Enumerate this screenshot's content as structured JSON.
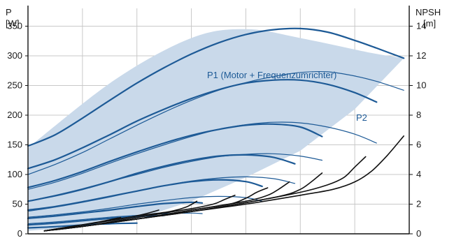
{
  "chart_data": {
    "type": "line",
    "y_left": {
      "label_top": "P",
      "label_unit": "[W]",
      "ylim": [
        0,
        380
      ],
      "ticks": [
        0,
        50,
        100,
        150,
        200,
        250,
        300,
        350
      ]
    },
    "y_right": {
      "label_top": "NPSH",
      "label_unit": "[m]",
      "ylim": [
        0,
        15.2
      ],
      "ticks": [
        0,
        2,
        4,
        6,
        8,
        10,
        12,
        14
      ]
    },
    "xlim": [
      0,
      7
    ],
    "grid": true,
    "annotations": [
      {
        "text": "P1 (Motor + Frequenzumrichter)"
      },
      {
        "text": "P2"
      }
    ],
    "colors": {
      "power_band": "#c9d9ea",
      "power_band_edge": "#e6eef6",
      "p1_curve": "#1d5a96",
      "p2_curve": "#1d5a96",
      "npsh_curve": "#111111",
      "label": "#1d5a96",
      "grid": "#c8c8c8"
    },
    "band_envelope": {
      "upper": [
        [
          0,
          145
        ],
        [
          1.6,
          260
        ],
        [
          3,
          330
        ],
        [
          4,
          345
        ],
        [
          5,
          330
        ],
        [
          6.3,
          305
        ],
        [
          6.9,
          296
        ]
      ],
      "lower": [
        [
          0,
          5
        ],
        [
          1,
          12
        ],
        [
          2,
          25
        ],
        [
          3,
          55
        ],
        [
          4,
          95
        ],
        [
          5,
          140
        ],
        [
          6,
          210
        ],
        [
          6.9,
          296
        ]
      ]
    },
    "series": [
      {
        "group": "P1",
        "x": [
          0,
          0.5,
          1,
          1.5,
          2,
          2.5,
          3,
          3.5,
          4,
          4.5,
          5,
          5.5,
          6,
          6.4,
          6.9
        ],
        "y": [
          148,
          167,
          195,
          225,
          254,
          280,
          303,
          322,
          336,
          344,
          346,
          340,
          326,
          313,
          296
        ]
      },
      {
        "group": "P2",
        "x": [
          0,
          0.5,
          1,
          1.5,
          2,
          2.5,
          3,
          3.5,
          4,
          4.5,
          5,
          5.5,
          6,
          6.4,
          6.9
        ],
        "y": [
          100,
          117,
          137,
          160,
          183,
          205,
          225,
          242,
          255,
          265,
          272,
          273,
          266,
          257,
          242
        ]
      },
      {
        "group": "P1",
        "x": [
          0,
          0.5,
          1,
          1.5,
          2,
          2.5,
          3,
          3.5,
          4,
          4.5,
          5,
          5.5,
          6,
          6.4
        ],
        "y": [
          110,
          125,
          145,
          167,
          190,
          210,
          228,
          243,
          254,
          259,
          259,
          252,
          238,
          222
        ]
      },
      {
        "group": "P2",
        "x": [
          0,
          0.5,
          1,
          1.5,
          2,
          2.5,
          3,
          3.5,
          4,
          4.5,
          5,
          5.5,
          6,
          6.4
        ],
        "y": [
          75,
          87,
          102,
          119,
          135,
          150,
          164,
          176,
          184,
          188,
          187,
          180,
          168,
          153
        ]
      },
      {
        "group": "P1",
        "x": [
          0,
          0.5,
          1,
          1.5,
          2,
          2.5,
          3,
          3.5,
          4,
          4.5,
          5,
          5.4
        ],
        "y": [
          78,
          90,
          105,
          122,
          138,
          153,
          166,
          176,
          183,
          185,
          180,
          164
        ]
      },
      {
        "group": "P2",
        "x": [
          0,
          0.5,
          1,
          1.5,
          2,
          2.5,
          3,
          3.5,
          4,
          4.5,
          5,
          5.4
        ],
        "y": [
          55,
          65,
          76,
          88,
          100,
          112,
          122,
          130,
          134,
          135,
          131,
          124
        ]
      },
      {
        "group": "P1",
        "x": [
          0,
          0.5,
          1,
          1.5,
          2,
          2.5,
          3,
          3.5,
          4,
          4.5,
          4.9
        ],
        "y": [
          55,
          64,
          75,
          88,
          102,
          114,
          124,
          131,
          133,
          129,
          118
        ]
      },
      {
        "group": "P2",
        "x": [
          0,
          0.5,
          1,
          1.5,
          2,
          2.5,
          3,
          3.5,
          4,
          4.5,
          4.9
        ],
        "y": [
          38,
          45,
          53,
          62,
          72,
          81,
          89,
          94,
          96,
          93,
          85
        ]
      },
      {
        "group": "P1",
        "x": [
          0,
          0.5,
          1,
          1.5,
          2,
          2.5,
          3,
          3.5,
          4,
          4.3
        ],
        "y": [
          40,
          46,
          54,
          63,
          72,
          81,
          88,
          91,
          88,
          80
        ]
      },
      {
        "group": "P2",
        "x": [
          0,
          0.5,
          1,
          1.5,
          2,
          2.5,
          3,
          3.5,
          4,
          4.3
        ],
        "y": [
          28,
          32,
          37,
          43,
          50,
          56,
          61,
          63,
          61,
          55
        ]
      },
      {
        "group": "P1",
        "x": [
          0,
          0.5,
          1,
          1.5,
          2,
          2.5,
          3,
          3.2
        ],
        "y": [
          26,
          30,
          35,
          40,
          46,
          51,
          53,
          52
        ]
      },
      {
        "group": "P2",
        "x": [
          0,
          0.5,
          1,
          1.5,
          2,
          2.5,
          3,
          3.2
        ],
        "y": [
          17,
          20,
          24,
          28,
          31,
          34,
          35,
          34
        ]
      },
      {
        "group": "P1",
        "x": [
          0,
          0.5,
          1,
          1.5,
          2,
          2.5
        ],
        "y": [
          15,
          18,
          22,
          26,
          29,
          31
        ]
      },
      {
        "group": "P1",
        "x": [
          0,
          0.5,
          1,
          1.5,
          2
        ],
        "y": [
          10,
          12,
          15,
          17,
          18
        ]
      },
      {
        "group": "NPSH",
        "x": [
          0.3,
          1,
          2,
          3,
          4,
          5,
          5.6,
          6,
          6.3,
          6.6,
          6.9
        ],
        "y": [
          0.2,
          0.5,
          1.0,
          1.5,
          2.0,
          2.6,
          3.0,
          3.5,
          4.2,
          5.3,
          6.6
        ]
      },
      {
        "group": "NPSH",
        "x": [
          0.3,
          1,
          2,
          3,
          4,
          5,
          5.5,
          5.8,
          6.0,
          6.2
        ],
        "y": [
          0.2,
          0.5,
          1.0,
          1.5,
          2.1,
          2.8,
          3.3,
          3.8,
          4.5,
          5.2
        ]
      },
      {
        "group": "NPSH",
        "x": [
          0.3,
          1,
          2,
          3,
          4,
          4.7,
          5.0,
          5.2,
          5.4
        ],
        "y": [
          0.2,
          0.5,
          1.0,
          1.5,
          2.1,
          2.6,
          3.0,
          3.5,
          4.1
        ]
      },
      {
        "group": "NPSH",
        "x": [
          0.3,
          1,
          2,
          3,
          4,
          4.4,
          4.6,
          4.8
        ],
        "y": [
          0.2,
          0.5,
          1.0,
          1.6,
          2.2,
          2.6,
          3.0,
          3.5
        ]
      },
      {
        "group": "NPSH",
        "x": [
          0.3,
          1,
          2,
          3,
          3.7,
          4.0,
          4.2,
          4.4
        ],
        "y": [
          0.2,
          0.5,
          1.0,
          1.6,
          2.0,
          2.4,
          2.8,
          3.1
        ]
      },
      {
        "group": "NPSH",
        "x": [
          0.3,
          1,
          2,
          3,
          3.4,
          3.6,
          3.8
        ],
        "y": [
          0.2,
          0.5,
          1.1,
          1.7,
          2.0,
          2.3,
          2.6
        ]
      },
      {
        "group": "NPSH",
        "x": [
          0.3,
          1,
          2,
          2.6,
          2.9,
          3.1
        ],
        "y": [
          0.2,
          0.6,
          1.2,
          1.5,
          1.8,
          2.2
        ]
      },
      {
        "group": "NPSH",
        "x": [
          0.3,
          1,
          1.7,
          2.1,
          2.4
        ],
        "y": [
          0.2,
          0.6,
          1.0,
          1.3,
          1.6
        ]
      },
      {
        "group": "NPSH",
        "x": [
          0.3,
          0.8,
          1.3,
          1.7
        ],
        "y": [
          0.2,
          0.5,
          0.8,
          1.1
        ]
      }
    ]
  }
}
